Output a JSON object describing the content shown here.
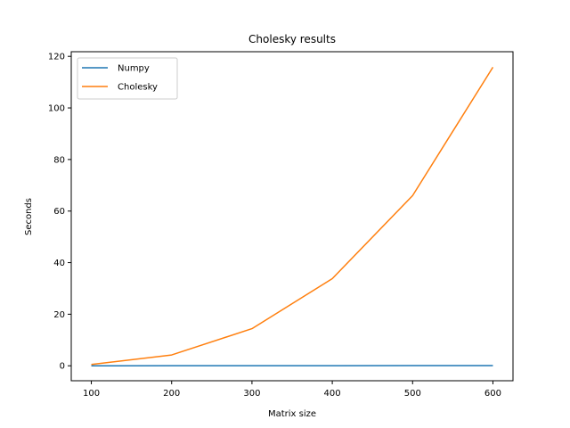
{
  "chart_data": {
    "type": "line",
    "title": "Cholesky results",
    "xlabel": "Matrix size",
    "ylabel": "Seconds",
    "x": [
      100,
      200,
      300,
      400,
      500,
      600
    ],
    "xlim": [
      75,
      625
    ],
    "ylim": [
      -5.8,
      121.8
    ],
    "xticks": [
      100,
      200,
      300,
      400,
      500,
      600
    ],
    "yticks": [
      0,
      20,
      40,
      60,
      80,
      100,
      120
    ],
    "grid": false,
    "legend_position": "upper-left",
    "series": [
      {
        "name": "Numpy",
        "color": "#1f77b4",
        "values": [
          0.01,
          0.02,
          0.03,
          0.05,
          0.07,
          0.1
        ]
      },
      {
        "name": "Cholesky",
        "color": "#ff7f0e",
        "values": [
          0.5,
          4.2,
          14.4,
          33.8,
          66.0,
          115.8
        ]
      }
    ]
  }
}
